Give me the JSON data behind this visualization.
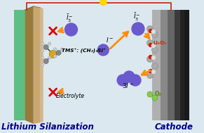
{
  "bg_color": "#dce8f0",
  "bottom_left_label": "Lithium Silanization",
  "bottom_right_label": "Cathode",
  "label_color": "#00008B",
  "label_fontsize": 8.5,
  "label_style": "italic",
  "label_weight": "bold",
  "circuit_color": "#cc2200",
  "bulb_color": "#FFD700",
  "arrow_color": "#FF8C00",
  "iodide_color": "#6A5ACD",
  "li2o2_label": "Li₂O₂",
  "o2_label": "O₂",
  "i3_label_top": "Ī₃⁻",
  "i_label": "I⁻",
  "3i_label": "3I⁻",
  "tms_label": "TMS⁺: (CH₃)₃Si⁺",
  "electrolyte_label": "Electrolyte",
  "anode_green": "#5cbf85",
  "anode_brown1": "#9a7a3a",
  "anode_brown2": "#c8a870",
  "anode_tan": "#d4b88a",
  "cathode_gray1": "#b0b0b0",
  "cathode_gray2": "#888888",
  "cathode_gray3": "#666666",
  "cathode_dark": "#3a3a3a",
  "cathode_vdark": "#222222"
}
